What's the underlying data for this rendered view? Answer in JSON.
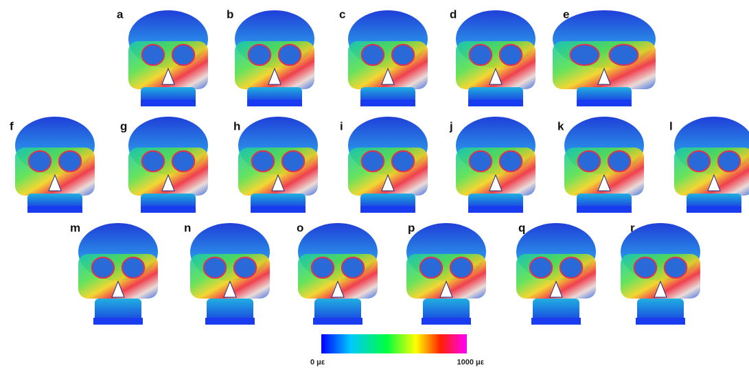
{
  "panels": [
    {
      "label": "a"
    },
    {
      "label": "b"
    },
    {
      "label": "c"
    },
    {
      "label": "d"
    },
    {
      "label": "e"
    },
    {
      "label": "f"
    },
    {
      "label": "g"
    },
    {
      "label": "h"
    },
    {
      "label": "i"
    },
    {
      "label": "j"
    },
    {
      "label": "k"
    },
    {
      "label": "l"
    },
    {
      "label": "m"
    },
    {
      "label": "n"
    },
    {
      "label": "o"
    },
    {
      "label": "p"
    },
    {
      "label": "q"
    },
    {
      "label": "r"
    }
  ],
  "colorbar": {
    "min_label": "0 με",
    "max_label": "1000 με"
  }
}
